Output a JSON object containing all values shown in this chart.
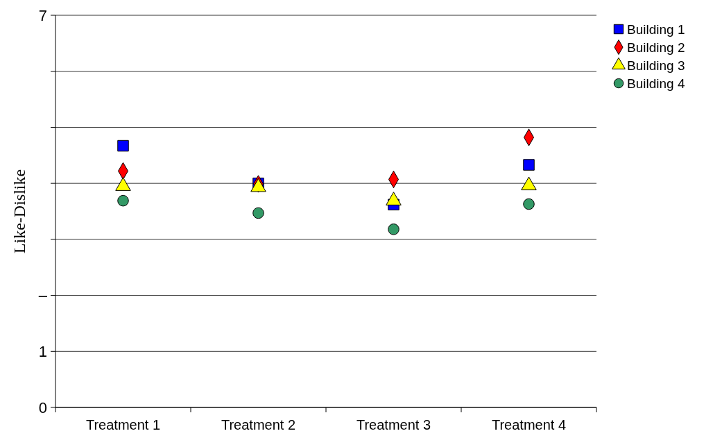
{
  "chart_data": {
    "type": "scatter",
    "ylabel": "Like-Dislike",
    "categories": [
      "Treatment 1",
      "Treatment 2",
      "Treatment 3",
      "Treatment 4"
    ],
    "ylim": [
      0,
      7
    ],
    "yticks": [
      0,
      1,
      {
        "value": 2,
        "label": "–"
      },
      {
        "value": 3,
        "label": null
      },
      {
        "value": 4,
        "label": null
      },
      {
        "value": 5,
        "label": null
      },
      {
        "value": 6,
        "label": null
      },
      7
    ],
    "grid": "y",
    "legend": "top right",
    "series": [
      {
        "name": "Building 1",
        "color": "#0000ff",
        "marker": "square",
        "values": [
          4.67,
          4.0,
          3.62,
          4.33
        ]
      },
      {
        "name": "Building 2",
        "color": "#ff0000",
        "marker": "diamond",
        "values": [
          4.22,
          3.99,
          4.07,
          4.82
        ]
      },
      {
        "name": "Building 3",
        "color": "#ffff00",
        "marker": "triangle",
        "values": [
          3.95,
          3.93,
          3.69,
          3.96
        ]
      },
      {
        "name": "Building 4",
        "color": "#339966",
        "marker": "circle",
        "values": [
          3.69,
          3.47,
          3.18,
          3.63
        ]
      }
    ]
  }
}
